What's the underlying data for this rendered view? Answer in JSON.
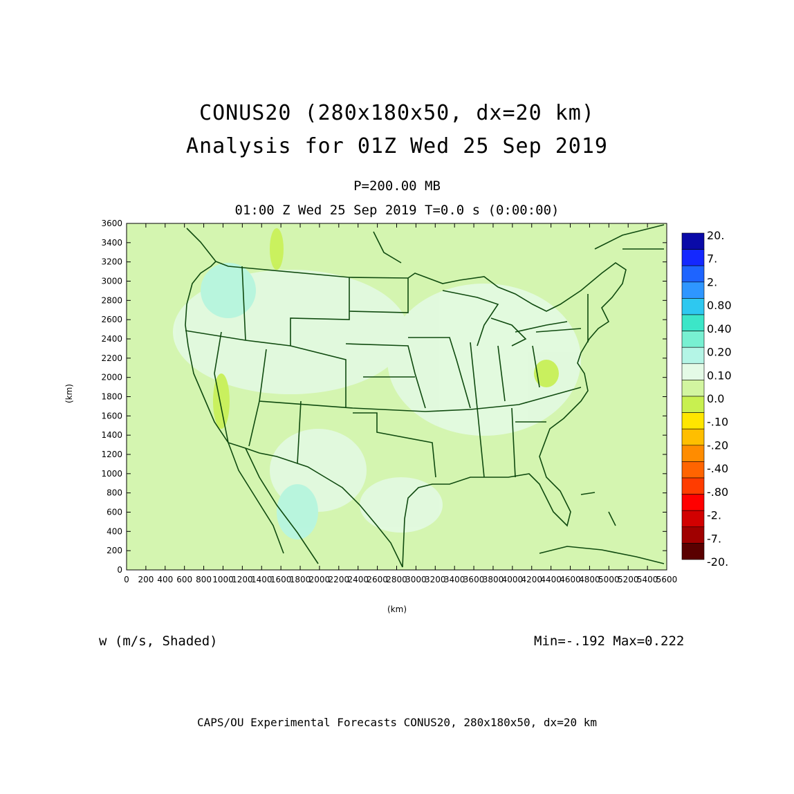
{
  "titles": {
    "line1": "CONUS20 (280x180x50, dx=20 km)",
    "line2": "Analysis for 01Z Wed 25 Sep 2019",
    "level": "P=200.00 MB",
    "time": "01:00 Z Wed 25 Sep 2019   T=0.0 s (0:00:00)"
  },
  "axes": {
    "x_unit": "(km)",
    "y_unit": "(km)",
    "x_ticks": [
      "0",
      "200",
      "400",
      "600",
      "800",
      "1000",
      "1200",
      "1400",
      "1600",
      "1800",
      "2000",
      "2200",
      "2400",
      "2600",
      "2800",
      "3000",
      "3200",
      "3400",
      "3600",
      "3800",
      "4000",
      "4200",
      "4400",
      "4600",
      "4800",
      "5000",
      "5200",
      "5400",
      "5600"
    ],
    "y_ticks": [
      "0",
      "200",
      "400",
      "600",
      "800",
      "1000",
      "1200",
      "1400",
      "1600",
      "1800",
      "2000",
      "2200",
      "2400",
      "2600",
      "2800",
      "3000",
      "3200",
      "3400",
      "3600"
    ],
    "xlim": [
      0,
      5600
    ],
    "ylim": [
      0,
      3600
    ]
  },
  "colorbar": {
    "labels": [
      "20.",
      "7.",
      "2.",
      "0.80",
      "0.40",
      "0.20",
      "0.10",
      "0.0",
      "-.10",
      "-.20",
      "-.40",
      "-.80",
      "-2.",
      "-7.",
      "-20."
    ],
    "colors": [
      "#0a0aa8",
      "#1428ff",
      "#1e64ff",
      "#2e96ff",
      "#2ec8f0",
      "#3ce6c8",
      "#78f0d2",
      "#b4f5e6",
      "#e4fae6",
      "#d2f5a0",
      "#c8f050",
      "#ffe600",
      "#ffbe00",
      "#ff8c00",
      "#ff6400",
      "#ff3c00",
      "#ff0000",
      "#d20000",
      "#a00000",
      "#5a0000"
    ]
  },
  "field": {
    "variable": "w (m/s, Shaded)",
    "minmax": "Min=-.192 Max=0.222",
    "background_color": "#d4f5b0",
    "boundary_color": "#0f4a0f"
  },
  "footer": "CAPS/OU Experimental Forecasts  CONUS20, 280x180x50, dx=20 km"
}
